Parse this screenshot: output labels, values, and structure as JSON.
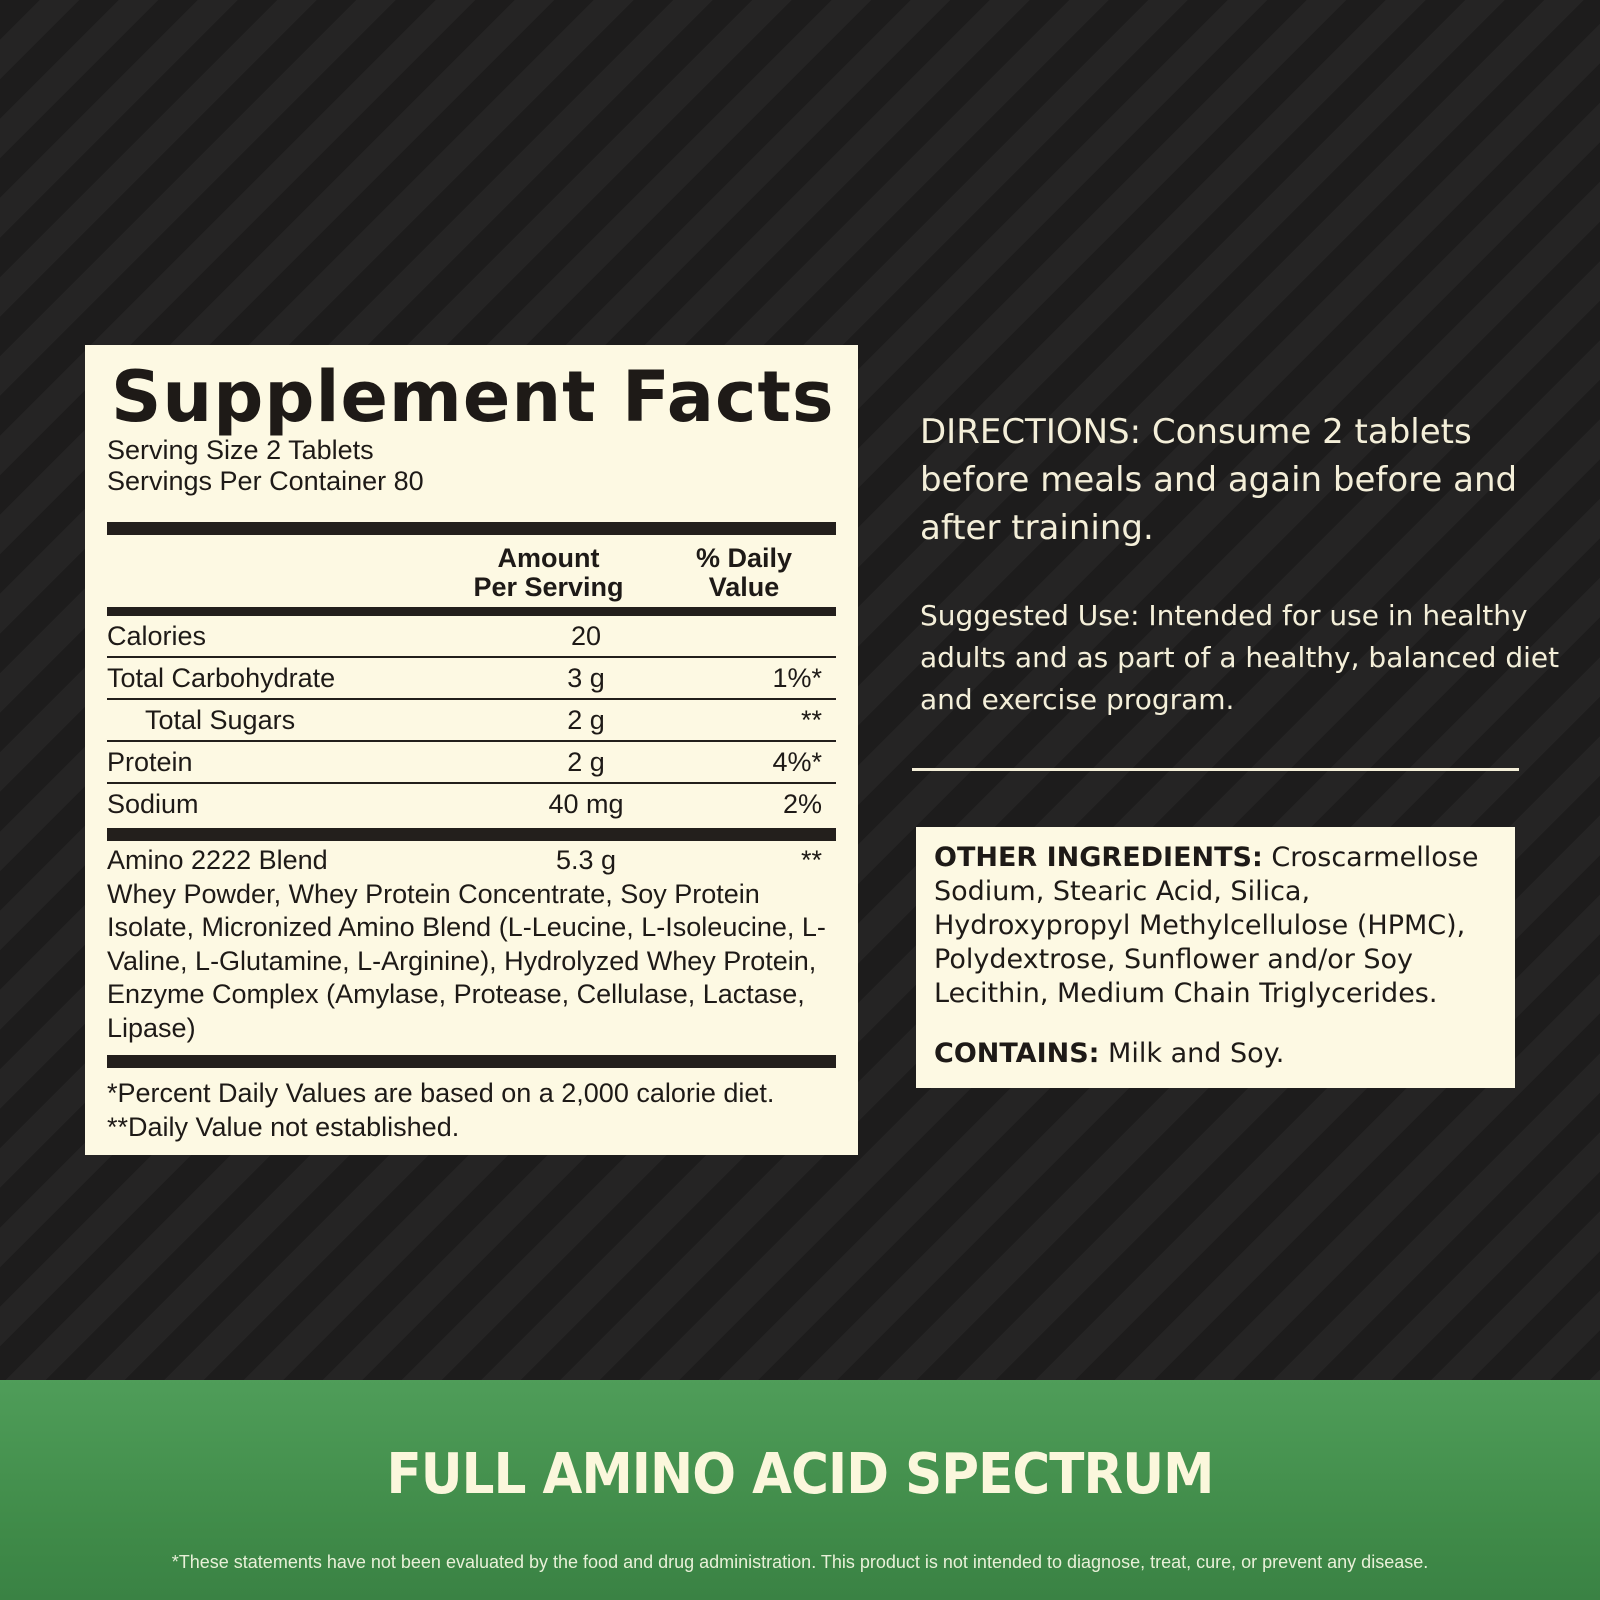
{
  "facts": {
    "title": "Supplement Facts",
    "serving_size": "Serving Size 2 Tablets",
    "servings_per_container": "Servings Per Container 80",
    "col_amount": [
      "Amount",
      "Per Serving"
    ],
    "col_dv": [
      "% Daily",
      "Value"
    ],
    "rows": [
      {
        "name": "Calories",
        "amount": "20",
        "dv": ""
      },
      {
        "name": "Total Carbohydrate",
        "amount": "3 g",
        "dv": "1%*"
      },
      {
        "name": "Total Sugars",
        "amount": "2 g",
        "dv": "**"
      },
      {
        "name": "Protein",
        "amount": "2 g",
        "dv": "4%*"
      },
      {
        "name": "Sodium",
        "amount": "40 mg",
        "dv": "2%"
      }
    ],
    "blend": {
      "name": "Amino 2222 Blend",
      "amount": "5.3 g",
      "dv": "**",
      "ingredients": "Whey Powder, Whey Protein Concentrate, Soy Protein Isolate, Micronized Amino Blend (L-Leucine, L-Isoleucine, L-Valine, L-Glutamine, L-Arginine), Hydrolyzed Whey Protein, Enzyme Complex (Amylase, Protease, Cellulase, Lactase, Lipase)"
    },
    "footnote1": "*Percent Daily Values are based on a 2,000 calorie diet.",
    "footnote2": "**Daily Value not established."
  },
  "directions": "DIRECTIONS: Consume 2 tablets before meals and again before and after training.",
  "suggested_use": "Suggested Use: Intended for use in healthy adults and as part of a healthy, balanced diet and exercise program.",
  "other": {
    "label": "OTHER INGREDIENTS:",
    "text": " Croscarmellose Sodium, Stearic Acid, Silica, Hydroxypropyl Methylcellulose (HPMC), Polydextrose, Sunflower and/or Soy Lecithin, Medium Chain Triglycerides.",
    "contains_label": "CONTAINS:",
    "contains_text": " Milk and Soy."
  },
  "banner": {
    "title": "FULL AMINO ACID SPECTRUM",
    "disclaimer": "*These statements have not been evaluated by the food and drug administration. This product is not intended to diagnose, treat, cure, or prevent any disease."
  },
  "colors": {
    "panel": "#fdf9e3",
    "green": "#4a9653",
    "background": "#1f1e1e"
  }
}
